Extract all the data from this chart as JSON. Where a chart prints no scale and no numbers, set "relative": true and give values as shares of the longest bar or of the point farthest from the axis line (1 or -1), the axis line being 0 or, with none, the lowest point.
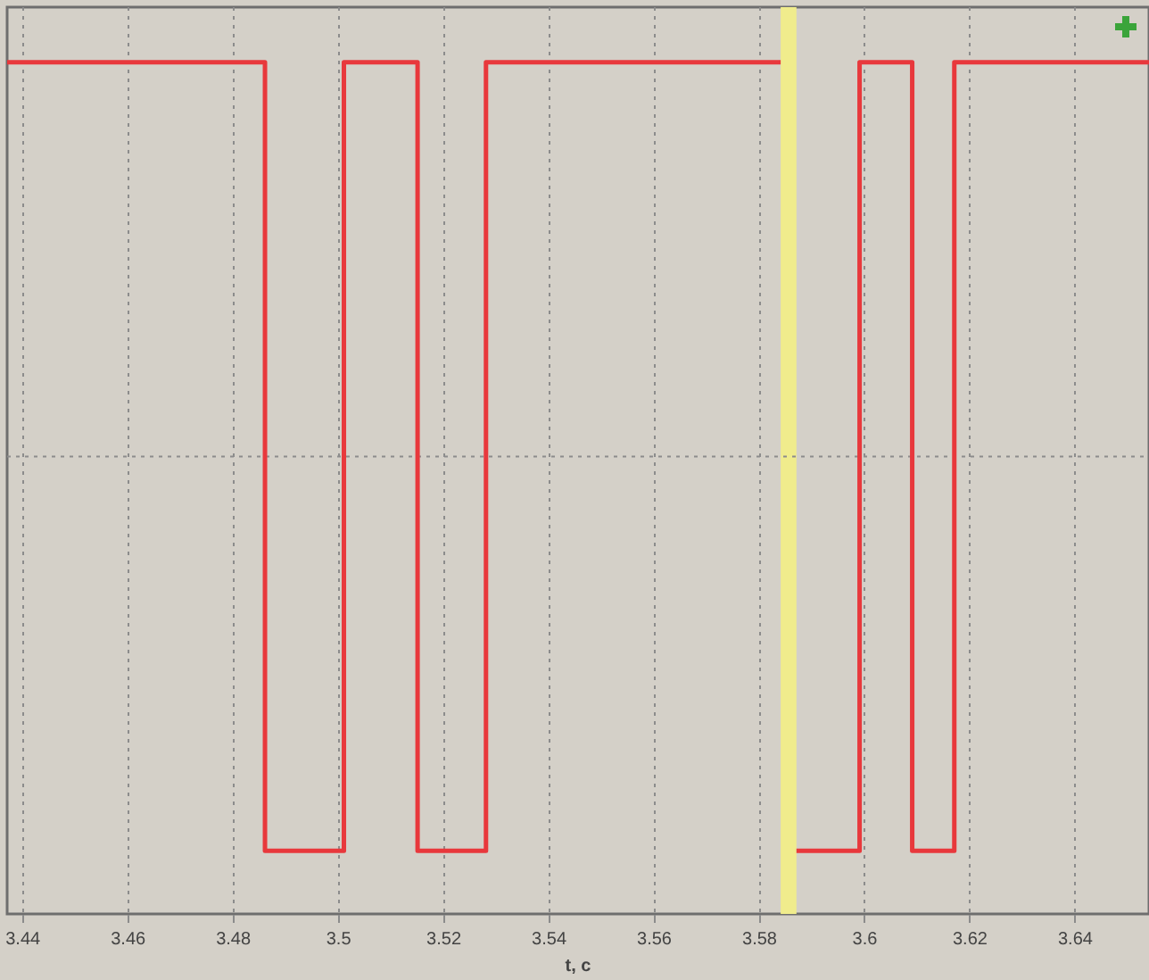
{
  "chart_data": {
    "type": "line",
    "relative": true,
    "xlabel": "t, с",
    "xlim": [
      3.437,
      3.654
    ],
    "xticks": [
      3.44,
      3.46,
      3.48,
      3.5,
      3.52,
      3.54,
      3.56,
      3.58,
      3.6,
      3.62,
      3.64
    ],
    "tick_labels": "x",
    "grid": "x",
    "legend": false,
    "marker": "none",
    "line_style": "solid",
    "series": [
      {
        "color": "#e8383c",
        "x": [
          3.437,
          3.486,
          3.486,
          3.501,
          3.501,
          3.515,
          3.515,
          3.528,
          3.528,
          3.584,
          3.585,
          3.587,
          3.599,
          3.599,
          3.609,
          3.609,
          3.617,
          3.617,
          3.654
        ],
        "values": [
          1,
          1,
          0,
          0,
          1,
          1,
          0,
          0,
          1,
          1,
          null,
          0,
          0,
          1,
          1,
          0,
          0,
          1,
          1
        ]
      }
    ],
    "ref_lines": [
      {
        "axis": "y",
        "value": 0.5,
        "color": "#8c8c8c",
        "line_style": "dotted"
      }
    ],
    "bands": [
      {
        "axis": "x",
        "from": 3.584,
        "to": 3.587,
        "color": "#f0ec8c"
      }
    ]
  }
}
